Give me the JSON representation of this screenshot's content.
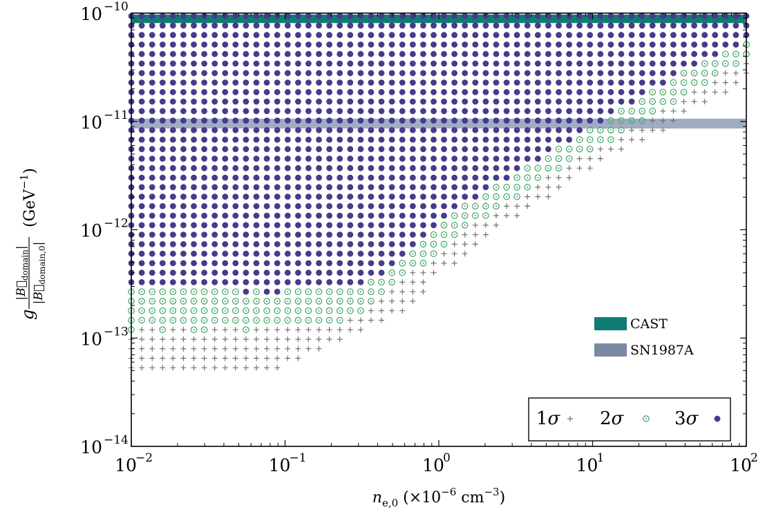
{
  "chart_data": {
    "type": "scatter",
    "x_scale": "log",
    "y_scale": "log",
    "xlim": [
      0.01,
      100
    ],
    "ylim": [
      1e-14,
      1e-10
    ],
    "x_tick_labels": [
      {
        "value": 0.01,
        "base": "10",
        "exp": "−2"
      },
      {
        "value": 0.1,
        "base": "10",
        "exp": "−1"
      },
      {
        "value": 1,
        "base": "10",
        "exp": "0"
      },
      {
        "value": 10,
        "base": "10",
        "exp": "1"
      },
      {
        "value": 100,
        "base": "10",
        "exp": "2"
      }
    ],
    "y_tick_labels": [
      {
        "value": 1e-14,
        "base": "10",
        "exp": "−14"
      },
      {
        "value": 1e-13,
        "base": "10",
        "exp": "−13"
      },
      {
        "value": 1e-12,
        "base": "10",
        "exp": "−12"
      },
      {
        "value": 1e-11,
        "base": "10",
        "exp": "−11"
      },
      {
        "value": 1e-10,
        "base": "10",
        "exp": "−10"
      }
    ],
    "xlabel": {
      "main": "n",
      "sub": "e,0",
      "rest": " (×10",
      "sup": "−6",
      "unit": " cm",
      "unit_sup": "−3",
      "close": ")"
    },
    "ylabel": {
      "prefix": "g",
      "num": "|B⃗",
      "num_sub": "domain",
      "num_close": "|",
      "den": "|B⃗",
      "den_sub": "domain,0",
      "den_close": "|",
      "unit": "(GeV",
      "unit_sup": "−1",
      "unit_close": ")"
    },
    "grid_x_range": [
      0.01,
      100
    ],
    "grid_x_count": 60,
    "grid_y_range": [
      2.9e-14,
      9.4e-11
    ],
    "grid_y_count": 41,
    "bands": [
      {
        "name": "CAST",
        "y_range": [
          8.1e-11,
          9.7e-11
        ],
        "color": "#0f7c74"
      },
      {
        "name": "SN1987A",
        "y_range": [
          8.6e-12,
          1.06e-11
        ],
        "color": "#8e9db9",
        "opacity": 0.85
      }
    ],
    "series": [
      {
        "name": "1σ",
        "label_num": "1",
        "marker": "plus",
        "color": "#707070"
      },
      {
        "name": "2σ",
        "label_num": "2",
        "marker": "circle-dot",
        "color": "#4aab6d"
      },
      {
        "name": "3σ",
        "label_num": "3",
        "marker": "dot",
        "color": "#463b8c"
      }
    ],
    "region_rows": [
      {
        "row": 0,
        "c3": 59,
        "c2": 59,
        "c1": 59
      },
      {
        "row": 1,
        "c3": 59,
        "c2": 59,
        "c1": 59
      },
      {
        "row": 2,
        "c3": 59,
        "c2": 59,
        "c1": 59
      },
      {
        "row": 3,
        "c3": 58,
        "c2": 59,
        "c1": 59
      },
      {
        "row": 4,
        "c3": 56,
        "c2": 59,
        "c1": 59
      },
      {
        "row": 5,
        "c3": 54,
        "c2": 58,
        "c1": 59
      },
      {
        "row": 6,
        "c3": 52,
        "c2": 56,
        "c1": 59
      },
      {
        "row": 7,
        "c3": 51,
        "c2": 55,
        "c1": 58
      },
      {
        "row": 8,
        "c3": 49,
        "c2": 53,
        "c1": 57
      },
      {
        "row": 9,
        "c3": 48,
        "c2": 52,
        "c1": 55
      },
      {
        "row": 10,
        "c3": 46,
        "c2": 50,
        "c1": 53
      },
      {
        "row": 11,
        "c3": 45,
        "c2": 49,
        "c1": 52
      },
      {
        "row": 12,
        "c3": 43,
        "c2": 47,
        "c1": 51
      },
      {
        "row": 13,
        "c3": 42,
        "c2": 46,
        "c1": 49
      },
      {
        "row": 14,
        "c3": 40,
        "c2": 44,
        "c1": 47
      },
      {
        "row": 15,
        "c3": 39,
        "c2": 42,
        "c1": 45
      },
      {
        "row": 16,
        "c3": 37,
        "c2": 41,
        "c1": 44
      },
      {
        "row": 17,
        "c3": 36,
        "c2": 39,
        "c1": 42
      },
      {
        "row": 18,
        "c3": 34,
        "c2": 38,
        "c1": 41
      },
      {
        "row": 19,
        "c3": 33,
        "c2": 37,
        "c1": 40
      },
      {
        "row": 20,
        "c3": 31,
        "c2": 35,
        "c1": 38
      },
      {
        "row": 21,
        "c3": 30,
        "c2": 34,
        "c1": 37
      },
      {
        "row": 22,
        "c3": 29,
        "c2": 32,
        "c1": 35
      },
      {
        "row": 23,
        "c3": 28,
        "c2": 31,
        "c1": 34
      },
      {
        "row": 24,
        "c3": 27,
        "c2": 30,
        "c1": 33
      },
      {
        "row": 25,
        "c3": 26,
        "c2": 29,
        "c1": 32
      },
      {
        "row": 26,
        "c3": 25,
        "c2": 28,
        "c1": 31
      },
      {
        "row": 27,
        "c3": 24,
        "c2": 26,
        "c1": 29
      },
      {
        "row": 28,
        "c3": 22,
        "c2": 25,
        "c1": 28
      },
      {
        "row": 29,
        "c3": -1,
        "c2": 24,
        "c1": 28
      },
      {
        "row": 30,
        "c3": -1,
        "c2": 23,
        "c1": 27
      },
      {
        "row": 31,
        "c3": -1,
        "c2": 22,
        "c1": 26
      },
      {
        "row": 32,
        "c3": -1,
        "c2": 20,
        "c1": 24
      },
      {
        "row": 33,
        "c3": -1,
        "c2": -1,
        "c1": 22
      },
      {
        "row": 34,
        "c3": -1,
        "c2": -1,
        "c1": 20
      },
      {
        "row": 35,
        "c3": -1,
        "c2": -1,
        "c1": 18
      },
      {
        "row": 36,
        "c3": -1,
        "c2": -1,
        "c1": 16
      },
      {
        "row": 37,
        "c3": -1,
        "c2": -1,
        "c1": 14
      },
      {
        "row": 38,
        "c3": -1,
        "c2": -1,
        "c1": -1
      },
      {
        "row": 39,
        "c3": -1,
        "c2": -1,
        "c1": -1
      },
      {
        "row": 40,
        "c3": -1,
        "c2": -1,
        "c1": -1
      }
    ],
    "region_note_exceptions": [
      {
        "row": 29,
        "c3_cells": [
          11,
          13,
          14
        ]
      },
      {
        "row": 33,
        "c2_cells": [
          0,
          3,
          6,
          7,
          11
        ]
      }
    ],
    "band_legend_position": "mid-right",
    "legend_position": "bottom-right"
  }
}
